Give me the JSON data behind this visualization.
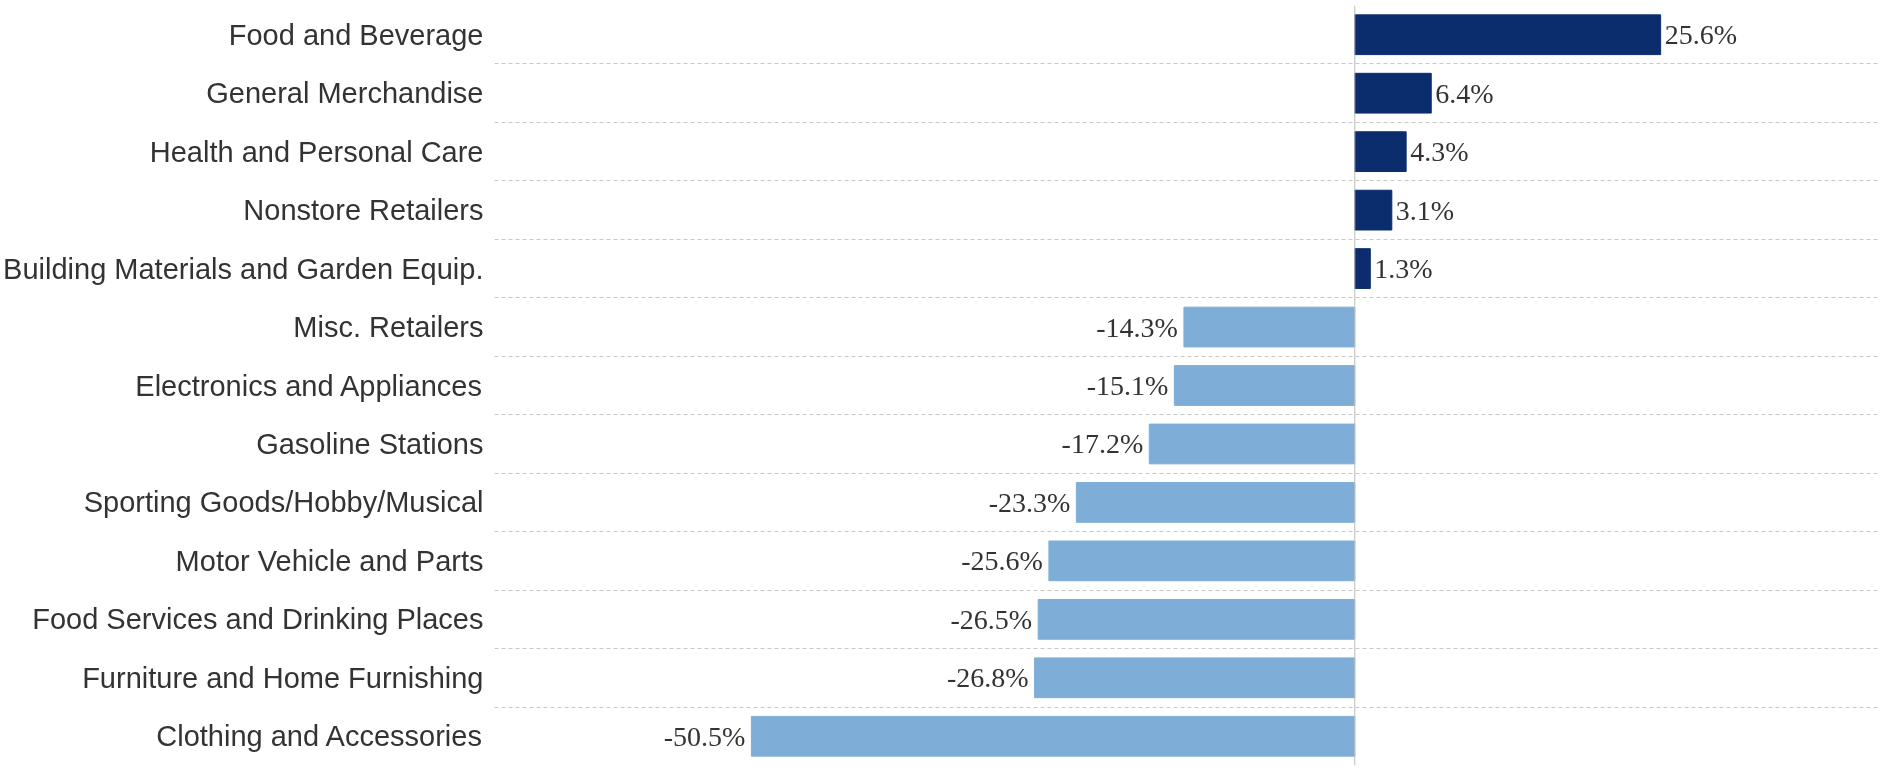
{
  "chart_data": {
    "type": "bar",
    "orientation": "horizontal",
    "categories": [
      "Food and Beverage",
      "General Merchandise",
      "Health and Personal Care",
      "Nonstore Retailers",
      "Building Materials and Garden Equip.",
      "Misc. Retailers",
      "Electronics and Appliances",
      "Gasoline Stations",
      "Sporting Goods/Hobby/Musical",
      "Motor Vehicle and Parts",
      "Food Services and Drinking Places",
      "Furniture and Home Furnishing",
      "Clothing and Accessories"
    ],
    "values": [
      25.6,
      6.4,
      4.3,
      3.1,
      1.3,
      -14.3,
      -15.1,
      -17.2,
      -23.3,
      -25.6,
      -26.5,
      -26.8,
      -50.5
    ],
    "colors": [
      "#0b2d6e",
      "#0b2d6e",
      "#0b2d6e",
      "#0b2d6e",
      "#0b2d6e",
      "#7eaed8",
      "#7eaed8",
      "#7eaed8",
      "#7eaed8",
      "#7eaed8",
      "#7eaed8",
      "#7eaed8",
      "#7eaed8"
    ],
    "value_labels": [
      "25.6%",
      "6.4%",
      "4.3%",
      "3.1%",
      "1.3%",
      "-14.3%",
      "-15.1%",
      "-17.2%",
      "-23.3%",
      "-25.6%",
      "-26.5%",
      "-26.8%",
      "-50.5%"
    ],
    "xlim": [
      -72,
      44
    ],
    "grid": "y",
    "tick_labels": "y"
  }
}
